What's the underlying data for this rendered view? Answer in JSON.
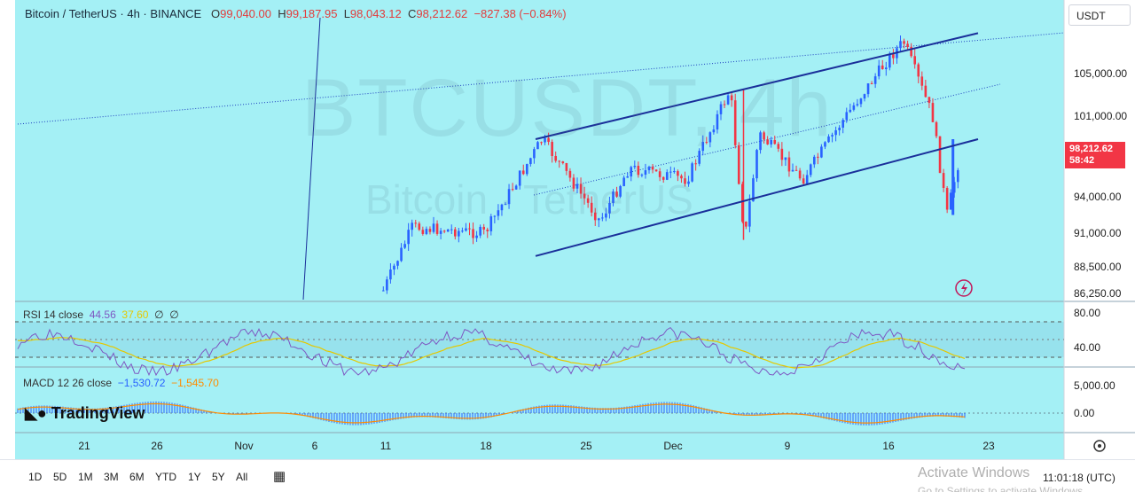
{
  "header": {
    "symbol": "Bitcoin / TetherUS · 4h · BINANCE",
    "open_label": "O",
    "open": "99,040.00",
    "high_label": "H",
    "high": "99,187.95",
    "low_label": "L",
    "low": "98,043.12",
    "close_label": "C",
    "close": "98,212.62",
    "change": "−827.38 (−0.84%)"
  },
  "watermark": {
    "ticker": "BTCUSDT, 4h",
    "name": "Bitcoin · TetherUS"
  },
  "currency_button": "USDT",
  "price_tag": {
    "price": "98,212.62",
    "countdown": "58:42"
  },
  "rsi_legend": {
    "label": "RSI 14 close",
    "rsi": "44.56",
    "ma": "37.60",
    "extra1": "∅",
    "extra2": "∅"
  },
  "macd_legend": {
    "label": "MACD 12 26 close",
    "macd": "−1,530.72",
    "signal": "−1,545.70"
  },
  "logo": "TradingView",
  "bottom_bar": {
    "ranges": [
      "1D",
      "5D",
      "1M",
      "3M",
      "6M",
      "YTD",
      "1Y",
      "5Y",
      "All"
    ],
    "clock": "11:01:18 (UTC)",
    "activate_title": "Activate Windows",
    "activate_sub": "Go to Settings to activate Windows."
  },
  "colors": {
    "background": "#a4f0f5",
    "up": "#2962ff",
    "down": "#f23645",
    "channel": "#1a2f9a",
    "rsi_line": "#7e57c2",
    "rsi_ma": "#e6c800",
    "macd_hist": "#2962ff",
    "signal_line": "#ff8c00",
    "last_price": "#f23645"
  },
  "chart_data": {
    "type": "candlestick",
    "title": "Bitcoin / TetherUS · 4h · BINANCE",
    "price_axis": {
      "ticks": [
        86250,
        88500,
        91000,
        94000,
        101000,
        105000
      ],
      "tick_labels": [
        "86,250.00",
        "88,500.00",
        "91,000.00",
        "94,000.00",
        "101,000.00",
        "105,000.00"
      ]
    },
    "time_axis": {
      "ticks": [
        "21",
        "26",
        "Nov",
        "6",
        "11",
        "18",
        "25",
        "Dec",
        "9",
        "16",
        "23"
      ]
    },
    "candles_summary": [
      {
        "date": "Nov 11",
        "price": 86500
      },
      {
        "date": "Nov 13",
        "price": 91500
      },
      {
        "date": "Nov 18",
        "price": 91000
      },
      {
        "date": "Nov 22",
        "price": 99000
      },
      {
        "date": "Nov 26",
        "price": 92000
      },
      {
        "date": "Nov 28",
        "price": 96500
      },
      {
        "date": "Dec 2",
        "price": 95500
      },
      {
        "date": "Dec 5",
        "price": 103500
      },
      {
        "date": "Dec 6",
        "price": 90500
      },
      {
        "date": "Dec 7",
        "price": 99500
      },
      {
        "date": "Dec 10",
        "price": 95500
      },
      {
        "date": "Dec 13",
        "price": 101000
      },
      {
        "date": "Dec 16",
        "price": 106500
      },
      {
        "date": "Dec 17",
        "price": 108000
      },
      {
        "date": "Dec 19",
        "price": 101000
      },
      {
        "date": "Dec 20",
        "price": 92500
      },
      {
        "date": "Dec 21",
        "price": 98212.62
      }
    ],
    "channel": {
      "upper": [
        {
          "date": "Nov 21",
          "price": 99000
        },
        {
          "date": "Dec 21",
          "price": 108800
        }
      ],
      "lower": [
        {
          "date": "Nov 21",
          "price": 89300
        },
        {
          "date": "Dec 21",
          "price": 99000
        }
      ]
    },
    "rsi": {
      "period": 14,
      "value": 44.56,
      "ma": 37.6,
      "levels": [
        80,
        40
      ],
      "tick_labels": [
        "80.00",
        "40.00"
      ]
    },
    "macd": {
      "fast": 12,
      "slow": 26,
      "macd": -1530.72,
      "signal": -1545.7,
      "tick_labels": [
        "5,000.00",
        "0.00"
      ]
    }
  }
}
